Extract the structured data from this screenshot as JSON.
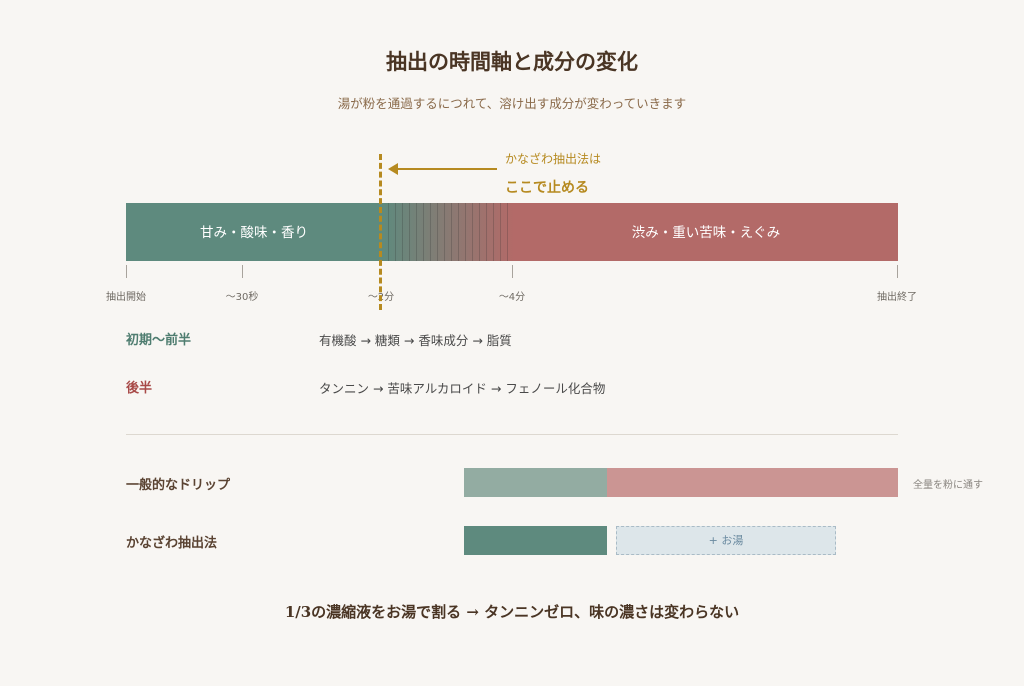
{
  "header": {
    "title": "抽出の時間軸と成分の変化",
    "subtitle": "湯が粉を通過するにつれて、溶け出す成分が変わっていきます"
  },
  "annotation": {
    "line1": "かなざわ抽出法は",
    "line2": "ここで止める"
  },
  "timeline": {
    "early_label": "甘み・酸味・香り",
    "late_label": "渋み・重い苦味・えぐみ",
    "ticks": [
      "抽出開始",
      "〜30秒",
      "〜2分",
      "〜4分",
      "抽出終了"
    ]
  },
  "phases": [
    {
      "label": "初期〜前半",
      "components": "有機酸 → 糖類 → 香味成分 → 脂質",
      "color": "#4f7d70"
    },
    {
      "label": "後半",
      "components": "タンニン → 苦味アルカロイド → フェノール化合物",
      "color": "#a84a48"
    }
  ],
  "comparison": {
    "general": {
      "label": "一般的なドリップ",
      "note": "全量を粉に通す"
    },
    "kanazawa": {
      "label": "かなざわ抽出法",
      "plus": "+ お湯"
    }
  },
  "colors": {
    "accent": "#b68a20",
    "early": "#5e8a7e",
    "late": "#b36a68"
  },
  "conclusion": "1/3の濃縮液をお湯で割る → タンニンゼロ、味の濃さは変わらない"
}
